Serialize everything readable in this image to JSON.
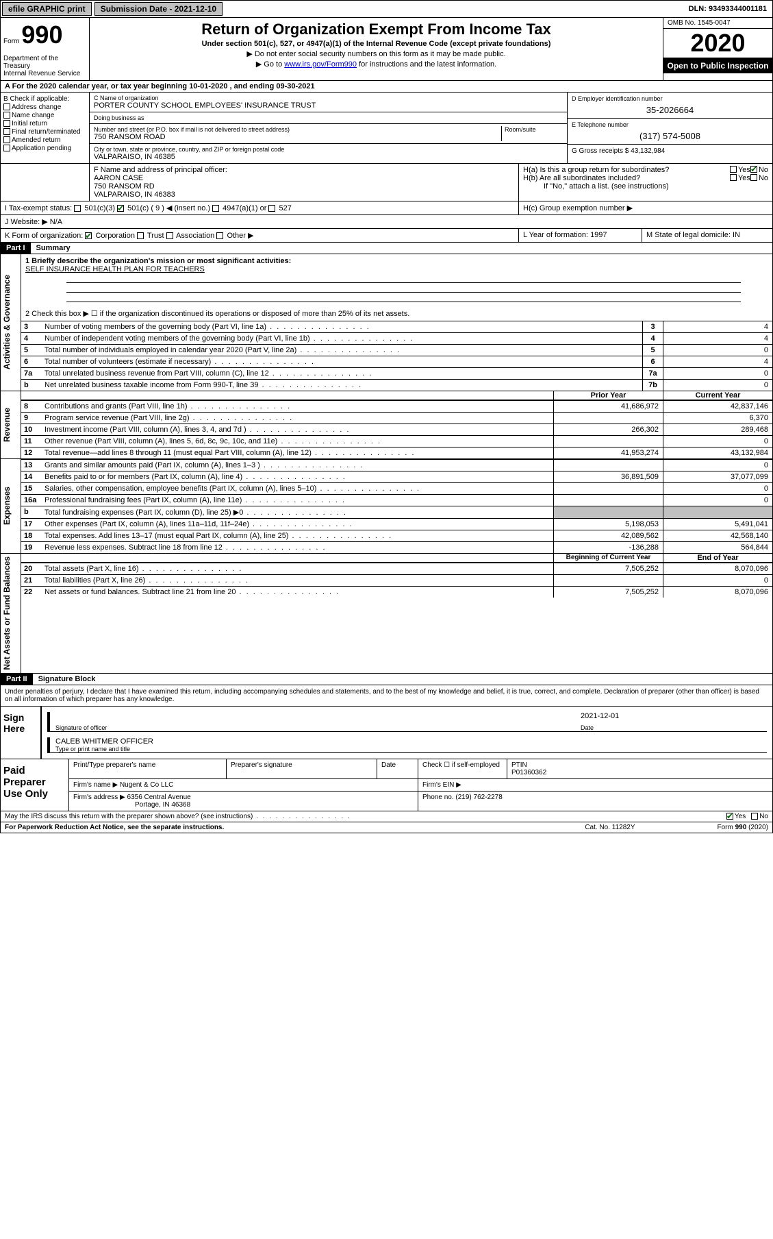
{
  "topbar": {
    "efile": "efile GRAPHIC print",
    "submission_label": "Submission Date - 2021-12-10",
    "dln": "DLN: 93493344001181"
  },
  "header": {
    "form_word": "Form",
    "form_num": "990",
    "dept": "Department of the Treasury\nInternal Revenue Service",
    "title": "Return of Organization Exempt From Income Tax",
    "sub": "Under section 501(c), 527, or 4947(a)(1) of the Internal Revenue Code (except private foundations)",
    "line1": "▶ Do not enter social security numbers on this form as it may be made public.",
    "line2_pre": "▶ Go to ",
    "line2_link": "www.irs.gov/Form990",
    "line2_post": " for instructions and the latest information.",
    "omb": "OMB No. 1545-0047",
    "year": "2020",
    "otp": "Open to Public Inspection"
  },
  "section_a": "A For the 2020 calendar year, or tax year beginning 10-01-2020   , and ending 09-30-2021",
  "col_b": {
    "label": "B Check if applicable:",
    "items": [
      "Address change",
      "Name change",
      "Initial return",
      "Final return/terminated",
      "Amended return",
      "Application pending"
    ]
  },
  "col_c": {
    "name_label": "C Name of organization",
    "name": "PORTER COUNTY SCHOOL EMPLOYEES' INSURANCE TRUST",
    "dba_label": "Doing business as",
    "dba": "",
    "addr_label": "Number and street (or P.O. box if mail is not delivered to street address)",
    "room_label": "Room/suite",
    "addr": "750 RANSOM ROAD",
    "city_label": "City or town, state or province, country, and ZIP or foreign postal code",
    "city": "VALPARAISO, IN  46385",
    "officer_label": "F Name and address of principal officer:",
    "officer_name": "AARON CASE",
    "officer_addr": "750 RANSOM RD",
    "officer_city": "VALPARAISO, IN  46383"
  },
  "col_d": {
    "ein_label": "D Employer identification number",
    "ein": "35-2026664",
    "tel_label": "E Telephone number",
    "tel": "(317) 574-5008",
    "gross_label": "G Gross receipts $",
    "gross": "43,132,984"
  },
  "h": {
    "a_label": "H(a)  Is this a group return for subordinates?",
    "a_yes": "Yes",
    "a_no": "No",
    "b_label": "H(b)  Are all subordinates included?",
    "b_yes": "Yes",
    "b_no": "No",
    "b_note": "If \"No,\" attach a list. (see instructions)",
    "c_label": "H(c)  Group exemption number ▶"
  },
  "i": {
    "label": "I  Tax-exempt status:",
    "opt1": "501(c)(3)",
    "opt2": "501(c) ( 9 ) ◀ (insert no.)",
    "opt3": "4947(a)(1) or",
    "opt4": "527"
  },
  "j": {
    "label": "J  Website: ▶",
    "val": "N/A"
  },
  "k": {
    "label": "K Form of organization:",
    "opts": [
      "Corporation",
      "Trust",
      "Association",
      "Other ▶"
    ]
  },
  "l": {
    "label": "L Year of formation:",
    "val": "1997"
  },
  "m": {
    "label": "M State of legal domicile:",
    "val": "IN"
  },
  "part1": {
    "hdr": "Part I",
    "title": "Summary"
  },
  "summary": {
    "q1_label": "1  Briefly describe the organization's mission or most significant activities:",
    "q1_val": "SELF INSURANCE HEALTH PLAN FOR TEACHERS",
    "q2": "2   Check this box ▶ ☐  if the organization discontinued its operations or disposed of more than 25% of its net assets.",
    "rows_gov": [
      {
        "n": "3",
        "d": "Number of voting members of the governing body (Part VI, line 1a)",
        "box": "3",
        "v": "4"
      },
      {
        "n": "4",
        "d": "Number of independent voting members of the governing body (Part VI, line 1b)",
        "box": "4",
        "v": "4"
      },
      {
        "n": "5",
        "d": "Total number of individuals employed in calendar year 2020 (Part V, line 2a)",
        "box": "5",
        "v": "0"
      },
      {
        "n": "6",
        "d": "Total number of volunteers (estimate if necessary)",
        "box": "6",
        "v": "4"
      },
      {
        "n": "7a",
        "d": "Total unrelated business revenue from Part VIII, column (C), line 12",
        "box": "7a",
        "v": "0"
      },
      {
        "n": "b",
        "d": "Net unrelated business taxable income from Form 990-T, line 39",
        "box": "7b",
        "v": "0"
      }
    ],
    "col_prior": "Prior Year",
    "col_current": "Current Year",
    "rows_rev": [
      {
        "n": "8",
        "d": "Contributions and grants (Part VIII, line 1h)",
        "p": "41,686,972",
        "c": "42,837,146"
      },
      {
        "n": "9",
        "d": "Program service revenue (Part VIII, line 2g)",
        "p": "",
        "c": "6,370"
      },
      {
        "n": "10",
        "d": "Investment income (Part VIII, column (A), lines 3, 4, and 7d )",
        "p": "266,302",
        "c": "289,468"
      },
      {
        "n": "11",
        "d": "Other revenue (Part VIII, column (A), lines 5, 6d, 8c, 9c, 10c, and 11e)",
        "p": "",
        "c": "0"
      },
      {
        "n": "12",
        "d": "Total revenue—add lines 8 through 11 (must equal Part VIII, column (A), line 12)",
        "p": "41,953,274",
        "c": "43,132,984"
      }
    ],
    "rows_exp": [
      {
        "n": "13",
        "d": "Grants and similar amounts paid (Part IX, column (A), lines 1–3 )",
        "p": "",
        "c": "0"
      },
      {
        "n": "14",
        "d": "Benefits paid to or for members (Part IX, column (A), line 4)",
        "p": "36,891,509",
        "c": "37,077,099"
      },
      {
        "n": "15",
        "d": "Salaries, other compensation, employee benefits (Part IX, column (A), lines 5–10)",
        "p": "",
        "c": "0"
      },
      {
        "n": "16a",
        "d": "Professional fundraising fees (Part IX, column (A), line 11e)",
        "p": "",
        "c": "0"
      },
      {
        "n": "b",
        "d": "Total fundraising expenses (Part IX, column (D), line 25) ▶0",
        "p": "shaded",
        "c": "shaded"
      },
      {
        "n": "17",
        "d": "Other expenses (Part IX, column (A), lines 11a–11d, 11f–24e)",
        "p": "5,198,053",
        "c": "5,491,041"
      },
      {
        "n": "18",
        "d": "Total expenses. Add lines 13–17 (must equal Part IX, column (A), line 25)",
        "p": "42,089,562",
        "c": "42,568,140"
      },
      {
        "n": "19",
        "d": "Revenue less expenses. Subtract line 18 from line 12",
        "p": "-136,288",
        "c": "564,844"
      }
    ],
    "col_begin": "Beginning of Current Year",
    "col_end": "End of Year",
    "rows_net": [
      {
        "n": "20",
        "d": "Total assets (Part X, line 16)",
        "p": "7,505,252",
        "c": "8,070,096"
      },
      {
        "n": "21",
        "d": "Total liabilities (Part X, line 26)",
        "p": "",
        "c": "0"
      },
      {
        "n": "22",
        "d": "Net assets or fund balances. Subtract line 21 from line 20",
        "p": "7,505,252",
        "c": "8,070,096"
      }
    ],
    "side_gov": "Activities & Governance",
    "side_rev": "Revenue",
    "side_exp": "Expenses",
    "side_net": "Net Assets or Fund Balances"
  },
  "part2": {
    "hdr": "Part II",
    "title": "Signature Block"
  },
  "sig": {
    "penalty": "Under penalties of perjury, I declare that I have examined this return, including accompanying schedules and statements, and to the best of my knowledge and belief, it is true, correct, and complete. Declaration of preparer (other than officer) is based on all information of which preparer has any knowledge.",
    "sign_here": "Sign Here",
    "sig_officer": "Signature of officer",
    "date": "2021-12-01",
    "date_label": "Date",
    "name": "CALEB WHITMER  OFFICER",
    "name_label": "Type or print name and title"
  },
  "paid": {
    "label": "Paid Preparer Use Only",
    "h1": "Print/Type preparer's name",
    "h2": "Preparer's signature",
    "h3": "Date",
    "h4": "Check ☐ if self-employed",
    "h5_label": "PTIN",
    "h5": "P01360362",
    "firm_label": "Firm's name   ▶",
    "firm": "Nugent & Co LLC",
    "ein_label": "Firm's EIN ▶",
    "addr_label": "Firm's address ▶",
    "addr": "6356 Central Avenue",
    "addr2": "Portage, IN  46368",
    "phone_label": "Phone no.",
    "phone": "(219) 762-2278"
  },
  "footer": {
    "discuss": "May the IRS discuss this return with the preparer shown above? (see instructions)",
    "yes": "Yes",
    "no": "No",
    "pra": "For Paperwork Reduction Act Notice, see the separate instructions.",
    "cat": "Cat. No. 11282Y",
    "form": "Form 990 (2020)"
  }
}
